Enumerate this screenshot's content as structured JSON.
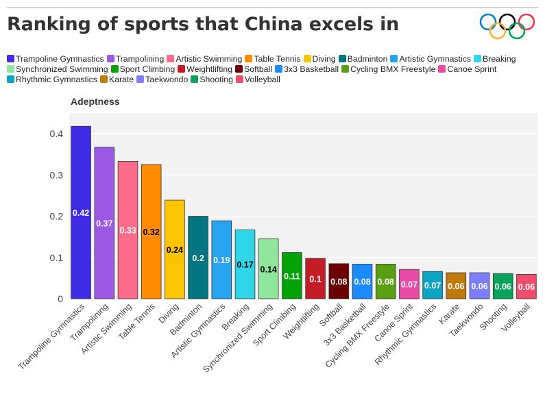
{
  "title": "Ranking of sports that China excels in",
  "logo": {
    "name": "olympic-rings",
    "colors": [
      "#0081C8",
      "#FCB131",
      "#000000",
      "#00A651",
      "#EE334E"
    ]
  },
  "chart_data": {
    "type": "bar",
    "title": "Ranking of sports that China excels in",
    "xlabel": "",
    "ylabel": "Adeptness",
    "ylim": [
      0,
      0.45
    ],
    "yticks": [
      0,
      0.1,
      0.2,
      0.3,
      0.4
    ],
    "ytick_labels": [
      "0",
      "0.1",
      "0.2",
      "0.3",
      "0.4"
    ],
    "grid": "horizontal",
    "legend_position": "top",
    "categories": [
      "Trampoline Gymnastics",
      "Trampolining",
      "Artistic Swimming",
      "Table Tennis",
      "Diving",
      "Badminton",
      "Artistic Gymnastics",
      "Breaking",
      "Synchronized Swimming",
      "Sport Climbing",
      "Weightlifting",
      "Softball",
      "3x3 Basketball",
      "Cycling BMX Freestyle",
      "Canoe Sprint",
      "Rhythmic Gymnastics",
      "Karate",
      "Taekwondo",
      "Shooting",
      "Volleyball"
    ],
    "values": [
      0.418,
      0.367,
      0.333,
      0.325,
      0.239,
      0.2,
      0.189,
      0.167,
      0.145,
      0.112,
      0.098,
      0.085,
      0.084,
      0.084,
      0.071,
      0.066,
      0.063,
      0.063,
      0.061,
      0.059
    ],
    "value_labels": [
      "0.42",
      "0.37",
      "0.33",
      "0.32",
      "0.24",
      "0.2",
      "0.19",
      "0.17",
      "0.14",
      "0.11",
      "0.1",
      "0.08",
      "0.08",
      "0.08",
      "0.07",
      "0.07",
      "0.06",
      "0.06",
      "0.06",
      "0.06"
    ],
    "colors": [
      "#3f2be3",
      "#9b59e6",
      "#ff6b8a",
      "#ff8c00",
      "#ffc400",
      "#027583",
      "#27a4ef",
      "#2ed6e8",
      "#8fe69c",
      "#03a307",
      "#c41d25",
      "#6b0000",
      "#1a8cff",
      "#5a9e14",
      "#e84aa5",
      "#0aa3c2",
      "#c07a0a",
      "#7d7dff",
      "#07a45a",
      "#f04d6a"
    ],
    "label_colors": [
      "#ffffff",
      "#ffffff",
      "#ffffff",
      "#000000",
      "#000000",
      "#ffffff",
      "#ffffff",
      "#000000",
      "#000000",
      "#ffffff",
      "#ffffff",
      "#ffffff",
      "#ffffff",
      "#ffffff",
      "#ffffff",
      "#ffffff",
      "#ffffff",
      "#ffffff",
      "#ffffff",
      "#ffffff"
    ]
  }
}
